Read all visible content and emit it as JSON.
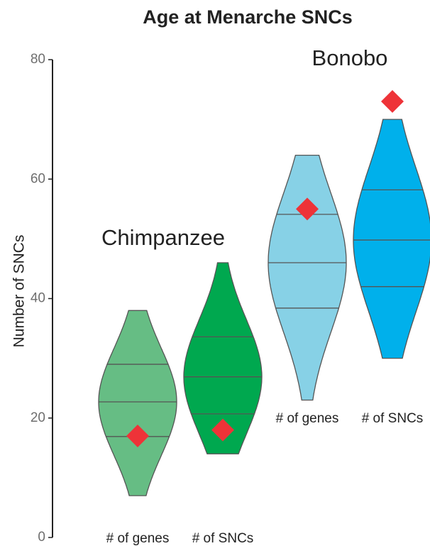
{
  "chart_data": {
    "type": "violin",
    "title": "Age at Menarche SNCs",
    "y_label": "Number of SNCs",
    "ylim": [
      0,
      80
    ],
    "yticks": [
      0,
      20,
      40,
      60,
      80
    ],
    "groups": [
      {
        "name": "Chimpanzee",
        "series": [
          {
            "name": "# of genes",
            "color": "#66bd84",
            "min": 7,
            "q1": 16.9,
            "median": 22.7,
            "q3": 29,
            "max": 38,
            "observed": 17
          },
          {
            "name": "# of SNCs",
            "color": "#00a84f",
            "min": 14,
            "q1": 20.7,
            "median": 26.9,
            "q3": 33.6,
            "max": 46,
            "observed": 18
          }
        ]
      },
      {
        "name": "Bonobo",
        "series": [
          {
            "name": "# of genes",
            "color": "#87d1e6",
            "min": 23,
            "q1": 38.4,
            "median": 46,
            "q3": 54.1,
            "max": 64,
            "observed": 55
          },
          {
            "name": "# of SNCs",
            "color": "#00b0eb",
            "min": 30,
            "q1": 42,
            "median": 49.8,
            "q3": 58.2,
            "max": 70,
            "observed": 73
          }
        ]
      }
    ],
    "marker_color": "#ee3338"
  }
}
